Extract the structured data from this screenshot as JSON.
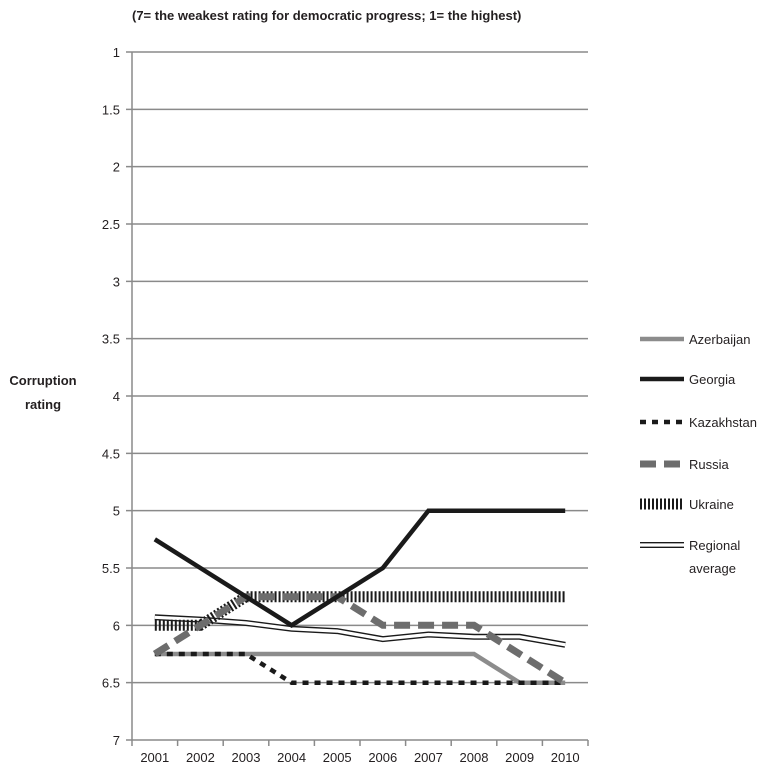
{
  "chart_data": {
    "type": "line",
    "title": "",
    "subtitle": "(7= the weakest rating for democratic progress; 1= the highest)",
    "xlabel": "",
    "ylabel_lines": [
      "Corruption",
      "rating"
    ],
    "x": [
      "2001",
      "2002",
      "2003",
      "2004",
      "2005",
      "2006",
      "2007",
      "2008",
      "2009",
      "2010"
    ],
    "ylim": [
      1,
      7
    ],
    "y_inverted": true,
    "y_ticks": [
      "1",
      "1.5",
      "2",
      "2.5",
      "3",
      "3.5",
      "4",
      "4.5",
      "5",
      "5.5",
      "6",
      "6.5",
      "7"
    ],
    "grid": "horizontal",
    "legend_position": "right",
    "series": [
      {
        "name": "Azerbaijan",
        "values": [
          6.25,
          6.25,
          6.25,
          6.25,
          6.25,
          6.25,
          6.25,
          6.25,
          6.5,
          6.5
        ],
        "color": "#8c8c8c",
        "style": "solid-thick"
      },
      {
        "name": "Georgia",
        "values": [
          5.25,
          5.5,
          5.75,
          6.0,
          5.75,
          5.5,
          5.0,
          5.0,
          5.0,
          5.0
        ],
        "color": "#1a1a1a",
        "style": "solid-thick"
      },
      {
        "name": "Kazakhstan",
        "values": [
          6.25,
          6.25,
          6.25,
          6.5,
          6.5,
          6.5,
          6.5,
          6.5,
          6.5,
          6.5
        ],
        "color": "#1a1a1a",
        "style": "short-dash"
      },
      {
        "name": "Russia",
        "values": [
          6.25,
          6.0,
          5.75,
          5.75,
          5.75,
          6.0,
          6.0,
          6.0,
          6.25,
          6.5
        ],
        "color": "#6d6d6d",
        "style": "long-dash"
      },
      {
        "name": "Ukraine",
        "values": [
          6.0,
          6.0,
          5.75,
          5.75,
          5.75,
          5.75,
          5.75,
          5.75,
          5.75,
          5.75
        ],
        "color": "#1a1a1a",
        "style": "hatched"
      },
      {
        "name": "Regional\naverage",
        "name_lines": [
          "Regional",
          "average"
        ],
        "values": [
          5.93,
          5.95,
          5.98,
          6.03,
          6.05,
          6.12,
          6.08,
          6.1,
          6.1,
          6.17
        ],
        "color": "#1a1a1a",
        "style": "outline"
      }
    ]
  }
}
